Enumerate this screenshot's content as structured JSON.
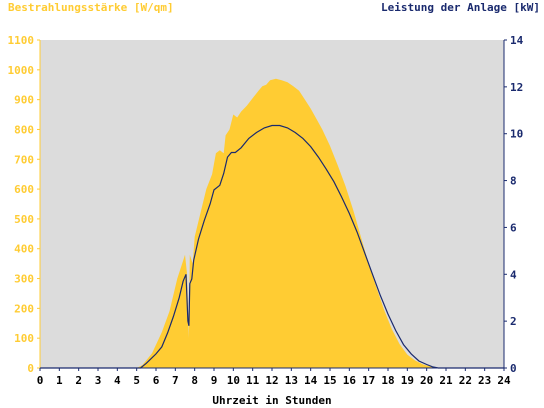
{
  "chart_data": {
    "type": "area",
    "left_axis_label": "Bestrahlungsstärke [W/qm]",
    "right_axis_label": "Leistung der Anlage [kW]",
    "xlabel": "Uhrzeit in Stunden",
    "x_ticks": [
      "0",
      "1",
      "2",
      "3",
      "4",
      "5",
      "6",
      "7",
      "8",
      "9",
      "10",
      "11",
      "12",
      "13",
      "14",
      "15",
      "16",
      "17",
      "18",
      "19",
      "20",
      "21",
      "22",
      "23",
      "24"
    ],
    "left_ticks": [
      "0",
      "100",
      "200",
      "300",
      "400",
      "500",
      "600",
      "700",
      "800",
      "900",
      "1000",
      "1100"
    ],
    "right_ticks": [
      "0",
      "2",
      "4",
      "6",
      "8",
      "10",
      "12",
      "14"
    ],
    "xlim": [
      0,
      24
    ],
    "ylim_left": [
      0,
      1100
    ],
    "ylim_right": [
      0,
      14
    ],
    "colors": {
      "irradiance": "#ffcc33",
      "power": "#1a2a6e",
      "plot_bg": "#dcdcdc",
      "left_text": "#ffcc33",
      "right_text": "#1a2a6e",
      "grid": "#ffffff"
    },
    "series": [
      {
        "name": "Bestrahlungsstärke [W/qm]",
        "axis": "left",
        "points": [
          [
            0,
            0
          ],
          [
            5,
            0
          ],
          [
            5.3,
            10
          ],
          [
            5.8,
            50
          ],
          [
            6.3,
            120
          ],
          [
            6.7,
            190
          ],
          [
            7.1,
            300
          ],
          [
            7.4,
            360
          ],
          [
            7.5,
            380
          ],
          [
            7.6,
            320
          ],
          [
            7.7,
            100
          ],
          [
            7.75,
            380
          ],
          [
            7.9,
            350
          ],
          [
            8.0,
            440
          ],
          [
            8.3,
            520
          ],
          [
            8.6,
            600
          ],
          [
            8.9,
            650
          ],
          [
            9.1,
            720
          ],
          [
            9.3,
            730
          ],
          [
            9.5,
            720
          ],
          [
            9.6,
            780
          ],
          [
            9.8,
            800
          ],
          [
            10.0,
            850
          ],
          [
            10.2,
            840
          ],
          [
            10.4,
            860
          ],
          [
            10.7,
            880
          ],
          [
            11.0,
            905
          ],
          [
            11.3,
            930
          ],
          [
            11.5,
            945
          ],
          [
            11.7,
            950
          ],
          [
            11.9,
            965
          ],
          [
            12.2,
            970
          ],
          [
            12.5,
            965
          ],
          [
            12.8,
            958
          ],
          [
            13.1,
            945
          ],
          [
            13.4,
            930
          ],
          [
            13.7,
            900
          ],
          [
            14.0,
            870
          ],
          [
            14.3,
            835
          ],
          [
            14.6,
            800
          ],
          [
            15.0,
            745
          ],
          [
            15.4,
            680
          ],
          [
            15.8,
            610
          ],
          [
            16.2,
            530
          ],
          [
            16.6,
            440
          ],
          [
            17.0,
            350
          ],
          [
            17.4,
            270
          ],
          [
            17.8,
            195
          ],
          [
            18.2,
            130
          ],
          [
            18.6,
            80
          ],
          [
            19.0,
            45
          ],
          [
            19.4,
            25
          ],
          [
            19.8,
            12
          ],
          [
            20.2,
            5
          ],
          [
            20.5,
            0
          ],
          [
            24,
            0
          ]
        ]
      },
      {
        "name": "Leistung der Anlage [kW]",
        "axis": "right",
        "points": [
          [
            0,
            0
          ],
          [
            5.2,
            0
          ],
          [
            5.5,
            0.2
          ],
          [
            6.0,
            0.6
          ],
          [
            6.3,
            0.9
          ],
          [
            6.6,
            1.5
          ],
          [
            6.9,
            2.2
          ],
          [
            7.2,
            3.0
          ],
          [
            7.4,
            3.7
          ],
          [
            7.55,
            4.0
          ],
          [
            7.65,
            2.0
          ],
          [
            7.7,
            1.8
          ],
          [
            7.75,
            3.6
          ],
          [
            7.85,
            3.8
          ],
          [
            7.95,
            4.6
          ],
          [
            8.2,
            5.5
          ],
          [
            8.5,
            6.3
          ],
          [
            8.8,
            7.0
          ],
          [
            9.0,
            7.6
          ],
          [
            9.3,
            7.8
          ],
          [
            9.5,
            8.3
          ],
          [
            9.7,
            9.0
          ],
          [
            9.9,
            9.2
          ],
          [
            10.1,
            9.2
          ],
          [
            10.4,
            9.4
          ],
          [
            10.8,
            9.8
          ],
          [
            11.2,
            10.05
          ],
          [
            11.6,
            10.25
          ],
          [
            12.0,
            10.35
          ],
          [
            12.4,
            10.35
          ],
          [
            12.8,
            10.25
          ],
          [
            13.2,
            10.05
          ],
          [
            13.6,
            9.8
          ],
          [
            14.0,
            9.45
          ],
          [
            14.4,
            9.0
          ],
          [
            14.8,
            8.5
          ],
          [
            15.2,
            7.95
          ],
          [
            15.6,
            7.3
          ],
          [
            16.0,
            6.6
          ],
          [
            16.4,
            5.8
          ],
          [
            16.8,
            4.9
          ],
          [
            17.2,
            4.0
          ],
          [
            17.6,
            3.1
          ],
          [
            18.0,
            2.3
          ],
          [
            18.4,
            1.6
          ],
          [
            18.8,
            1.0
          ],
          [
            19.2,
            0.6
          ],
          [
            19.6,
            0.3
          ],
          [
            20.0,
            0.15
          ],
          [
            20.3,
            0.05
          ],
          [
            20.6,
            0
          ],
          [
            24,
            0
          ]
        ]
      }
    ],
    "grid": false
  }
}
